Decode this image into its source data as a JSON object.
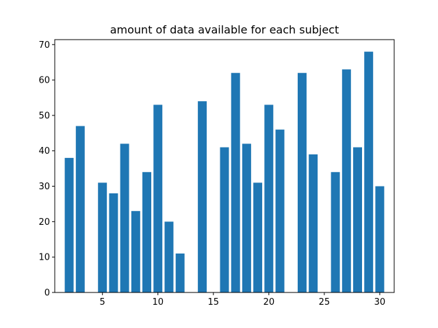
{
  "chart_data": {
    "type": "bar",
    "title": "amount of data available for each subject",
    "xlabel": "",
    "ylabel": "",
    "x": [
      2,
      3,
      5,
      6,
      7,
      8,
      9,
      10,
      11,
      12,
      14,
      16,
      17,
      18,
      19,
      20,
      21,
      23,
      24,
      26,
      27,
      28,
      29,
      30
    ],
    "values": [
      38,
      47,
      31,
      28,
      42,
      23,
      34,
      53,
      20,
      11,
      54,
      41,
      62,
      42,
      31,
      53,
      46,
      62,
      39,
      34,
      63,
      41,
      68,
      30
    ],
    "xlim": [
      0.7,
      31.3
    ],
    "ylim": [
      0,
      71.4
    ],
    "xticks": [
      5,
      10,
      15,
      20,
      25,
      30
    ],
    "yticks": [
      0,
      10,
      20,
      30,
      40,
      50,
      60,
      70
    ],
    "bar_color": "#1f77b4",
    "grid": false,
    "legend": "none"
  }
}
